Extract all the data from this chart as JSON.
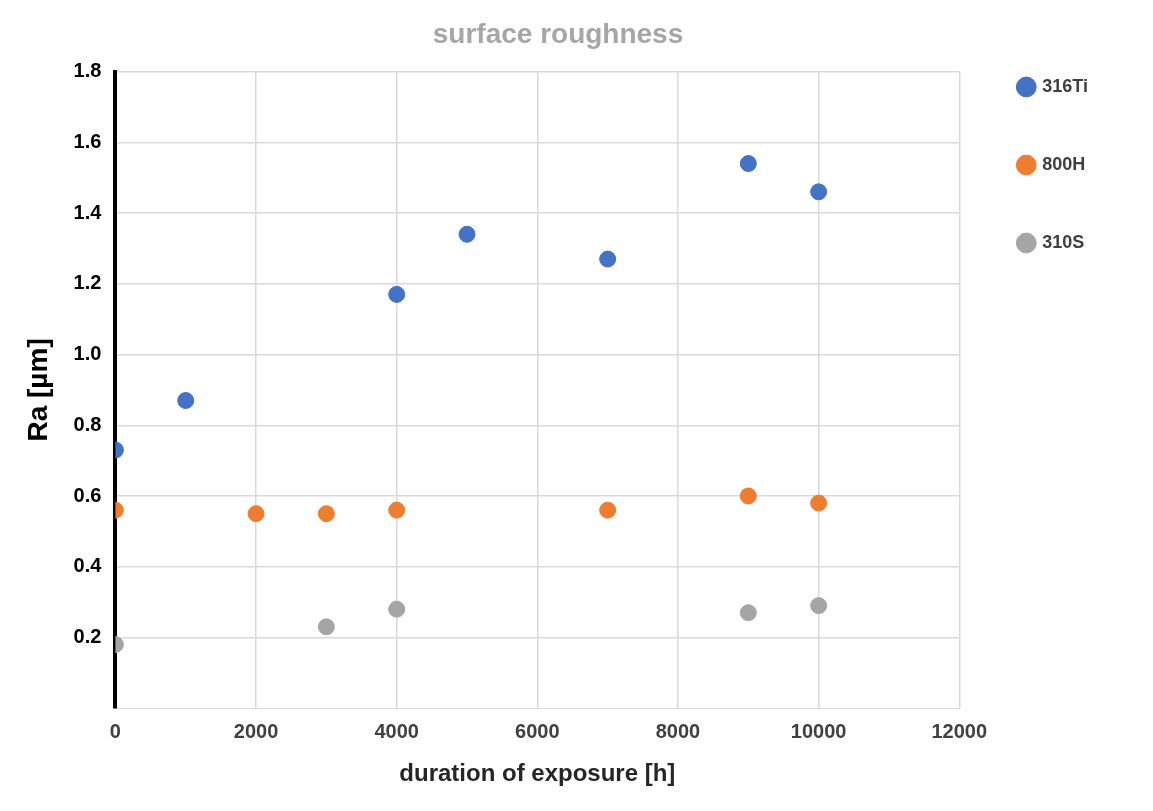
{
  "chart_data": {
    "type": "scatter",
    "title": "surface roughness",
    "xlabel": "duration of exposure [h]",
    "ylabel": "Ra [µm]",
    "xlim": [
      0,
      12000
    ],
    "xticks": [
      0,
      2000,
      4000,
      6000,
      8000,
      10000,
      12000
    ],
    "ylim": [
      0,
      1.8
    ],
    "yticks": [
      0.2,
      0.4,
      0.6,
      0.8,
      {
        "value": 1,
        "label": "1.0"
      },
      1.2,
      1.4,
      1.6,
      1.8
    ],
    "grid": true,
    "legend": "right",
    "marker": "circle",
    "series": [
      {
        "name": "316Ti",
        "color": "#4472c4",
        "x": [
          0,
          1000,
          4000,
          5000,
          7000,
          9000,
          10000
        ],
        "values": [
          0.73,
          0.87,
          1.17,
          1.34,
          1.27,
          1.54,
          1.46
        ]
      },
      {
        "name": "800H",
        "color": "#ed7d31",
        "x": [
          0,
          2000,
          3000,
          4000,
          7000,
          9000,
          10000
        ],
        "values": [
          0.56,
          0.55,
          0.55,
          0.56,
          0.56,
          0.6,
          0.58
        ]
      },
      {
        "name": "310S",
        "color": "#a5a5a5",
        "x": [
          0,
          3000,
          4000,
          9000,
          10000
        ],
        "values": [
          0.18,
          0.23,
          0.28,
          0.27,
          0.29
        ]
      }
    ]
  }
}
